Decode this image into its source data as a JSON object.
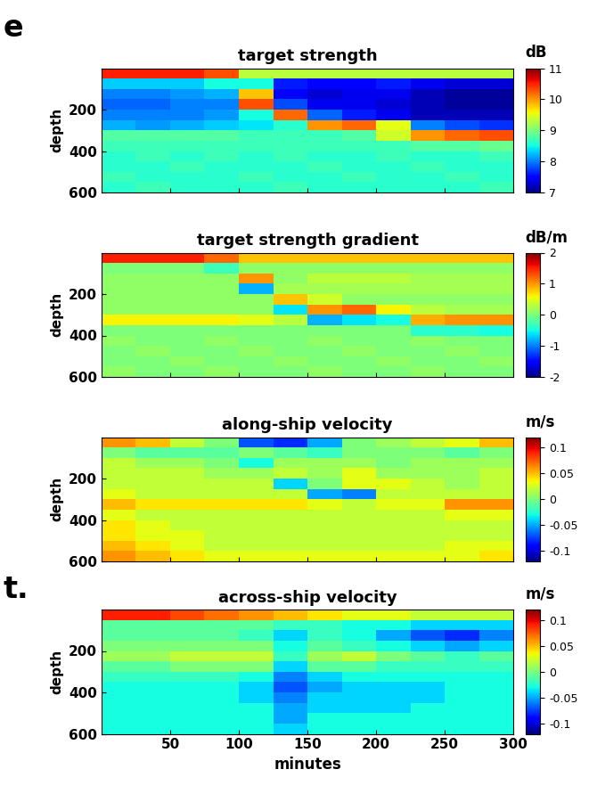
{
  "side_texts": [
    "e",
    "t."
  ],
  "chart_data": [
    {
      "type": "heatmap",
      "title": "target strength",
      "y_label": "depth",
      "tick_labels": "y",
      "xlim": [
        0,
        300
      ],
      "xticks": [
        50,
        100,
        150,
        200,
        250,
        300
      ],
      "ylim": [
        600,
        0
      ],
      "yticks": [
        200,
        400,
        600
      ],
      "x_edges": [
        0,
        25,
        50,
        75,
        100,
        125,
        150,
        175,
        200,
        225,
        250,
        275,
        300
      ],
      "y_edges": [
        0,
        50,
        100,
        150,
        200,
        250,
        300,
        350,
        400,
        450,
        500,
        550,
        600
      ],
      "cells": [
        [
          10.5,
          10.5,
          10.5,
          10.3,
          9.3,
          9.3,
          9.3,
          9.3,
          9.3,
          9.3,
          9.3,
          9.3
        ],
        [
          8.3,
          8.3,
          8.3,
          8.5,
          8.5,
          7.6,
          7.5,
          7.5,
          7.6,
          7.4,
          7.3,
          7.3
        ],
        [
          8.0,
          8.0,
          8.1,
          8.2,
          9.8,
          7.5,
          7.3,
          7.4,
          7.4,
          7.2,
          7.1,
          7.1
        ],
        [
          7.9,
          7.9,
          8.0,
          8.0,
          10.3,
          7.8,
          7.4,
          7.4,
          7.3,
          7.2,
          7.1,
          7.1
        ],
        [
          8.0,
          8.0,
          8.0,
          8.1,
          8.5,
          10.2,
          7.9,
          7.6,
          7.4,
          7.2,
          7.2,
          7.2
        ],
        [
          8.2,
          8.1,
          8.2,
          8.3,
          8.4,
          8.6,
          10.0,
          10.2,
          9.5,
          8.0,
          7.8,
          7.7
        ],
        [
          8.8,
          8.8,
          8.8,
          8.8,
          8.7,
          8.7,
          8.7,
          8.8,
          9.4,
          10.0,
          10.2,
          10.3
        ],
        [
          8.7,
          8.7,
          8.7,
          8.7,
          8.7,
          8.7,
          8.7,
          8.7,
          8.7,
          8.8,
          8.8,
          8.9
        ],
        [
          8.6,
          8.7,
          8.6,
          8.7,
          8.6,
          8.7,
          8.6,
          8.6,
          8.7,
          8.6,
          8.6,
          8.7
        ],
        [
          8.6,
          8.6,
          8.7,
          8.6,
          8.6,
          8.6,
          8.7,
          8.6,
          8.6,
          8.7,
          8.6,
          8.6
        ],
        [
          8.7,
          8.6,
          8.6,
          8.6,
          8.7,
          8.6,
          8.6,
          8.7,
          8.6,
          8.6,
          8.7,
          8.6
        ],
        [
          8.6,
          8.7,
          8.6,
          8.6,
          8.6,
          8.7,
          8.6,
          8.6,
          8.6,
          8.6,
          8.6,
          8.7
        ]
      ],
      "colorbar": {
        "label": "dB",
        "range": [
          7,
          11
        ],
        "ticks": [
          7,
          8,
          9,
          10,
          11
        ]
      }
    },
    {
      "type": "heatmap",
      "title": "target strength gradient",
      "y_label": "depth",
      "tick_labels": "y",
      "xlim": [
        0,
        300
      ],
      "xticks": [
        50,
        100,
        150,
        200,
        250,
        300
      ],
      "ylim": [
        600,
        0
      ],
      "yticks": [
        200,
        400,
        600
      ],
      "x_edges": [
        0,
        25,
        50,
        75,
        100,
        125,
        150,
        175,
        200,
        225,
        250,
        275,
        300
      ],
      "y_edges": [
        0,
        50,
        100,
        150,
        200,
        250,
        300,
        350,
        400,
        450,
        500,
        550,
        600
      ],
      "cells": [
        [
          1.5,
          1.5,
          1.5,
          1.2,
          0.8,
          0.8,
          0.8,
          0.8,
          0.8,
          0.8,
          0.8,
          0.8
        ],
        [
          0.0,
          0.0,
          0.0,
          -0.3,
          0.1,
          0.1,
          0.1,
          0.1,
          0.1,
          0.1,
          0.1,
          0.1
        ],
        [
          0.1,
          0.1,
          0.1,
          0.1,
          1.0,
          0.1,
          0.3,
          0.3,
          0.3,
          0.2,
          0.2,
          0.2
        ],
        [
          0.1,
          0.1,
          0.1,
          0.1,
          -0.8,
          0.2,
          0.2,
          0.2,
          0.2,
          0.2,
          0.2,
          0.2
        ],
        [
          0.1,
          0.1,
          0.1,
          0.1,
          0.1,
          0.8,
          0.4,
          0.1,
          0.1,
          0.1,
          0.1,
          0.1
        ],
        [
          0.1,
          0.1,
          0.1,
          0.1,
          0.1,
          -0.6,
          1.0,
          1.2,
          0.6,
          0.3,
          0.2,
          0.2
        ],
        [
          0.6,
          0.6,
          0.6,
          0.6,
          0.5,
          0.3,
          -0.8,
          -0.6,
          -0.5,
          0.9,
          1.0,
          1.0
        ],
        [
          0.0,
          0.0,
          0.0,
          0.0,
          0.0,
          0.0,
          0.0,
          0.0,
          0.0,
          -0.4,
          -0.4,
          -0.5
        ],
        [
          0.1,
          0.0,
          0.0,
          0.1,
          0.0,
          0.0,
          0.1,
          0.0,
          0.0,
          0.1,
          0.0,
          0.0
        ],
        [
          0.0,
          0.1,
          0.0,
          0.0,
          0.1,
          0.0,
          0.0,
          0.1,
          0.0,
          0.0,
          0.1,
          0.0
        ],
        [
          0.0,
          0.0,
          0.1,
          0.0,
          0.0,
          0.1,
          0.0,
          0.0,
          0.1,
          0.0,
          0.0,
          0.1
        ],
        [
          0.1,
          0.0,
          0.0,
          0.1,
          0.0,
          0.0,
          0.1,
          0.0,
          0.0,
          0.1,
          0.0,
          0.0
        ]
      ],
      "colorbar": {
        "label": "dB/m",
        "range": [
          -2,
          2
        ],
        "ticks": [
          -2,
          -1,
          0,
          1,
          2
        ]
      }
    },
    {
      "type": "heatmap",
      "title": "along-ship velocity",
      "y_label": "depth",
      "tick_labels": "y",
      "xlim": [
        0,
        300
      ],
      "xticks": [
        50,
        100,
        150,
        200,
        250,
        300
      ],
      "ylim": [
        600,
        0
      ],
      "yticks": [
        200,
        400,
        600
      ],
      "x_edges": [
        0,
        25,
        50,
        75,
        100,
        125,
        150,
        175,
        200,
        225,
        250,
        275,
        300
      ],
      "y_edges": [
        0,
        50,
        100,
        150,
        200,
        250,
        300,
        350,
        400,
        450,
        500,
        550,
        600
      ],
      "cells": [
        [
          0.06,
          0.05,
          0.02,
          0.0,
          -0.07,
          -0.08,
          -0.05,
          0.0,
          0.01,
          0.02,
          0.03,
          0.05
        ],
        [
          0.0,
          -0.01,
          -0.01,
          -0.01,
          0.0,
          -0.01,
          -0.02,
          0.0,
          0.0,
          0.0,
          -0.01,
          0.0
        ],
        [
          0.02,
          0.01,
          0.01,
          0.0,
          -0.03,
          0.01,
          0.01,
          0.01,
          0.0,
          0.01,
          0.01,
          0.01
        ],
        [
          0.02,
          0.02,
          0.02,
          0.01,
          0.01,
          0.02,
          0.01,
          0.03,
          0.01,
          0.01,
          0.01,
          0.02
        ],
        [
          0.02,
          0.02,
          0.02,
          0.02,
          0.02,
          -0.04,
          0.0,
          0.03,
          0.03,
          0.02,
          0.01,
          0.02
        ],
        [
          0.03,
          0.02,
          0.02,
          0.02,
          0.02,
          0.02,
          -0.05,
          -0.06,
          0.02,
          0.02,
          0.02,
          0.02
        ],
        [
          0.05,
          0.04,
          0.04,
          0.04,
          0.04,
          0.04,
          0.03,
          0.02,
          0.03,
          0.03,
          0.06,
          0.06
        ],
        [
          0.03,
          0.02,
          0.02,
          0.02,
          0.02,
          0.02,
          0.02,
          0.02,
          0.02,
          0.02,
          0.03,
          0.03
        ],
        [
          0.04,
          0.03,
          0.02,
          0.02,
          0.02,
          0.02,
          0.02,
          0.02,
          0.02,
          0.02,
          0.02,
          0.02
        ],
        [
          0.04,
          0.03,
          0.03,
          0.02,
          0.02,
          0.02,
          0.02,
          0.02,
          0.02,
          0.02,
          0.02,
          0.02
        ],
        [
          0.05,
          0.04,
          0.03,
          0.02,
          0.02,
          0.02,
          0.02,
          0.02,
          0.02,
          0.02,
          0.03,
          0.03
        ],
        [
          0.06,
          0.05,
          0.04,
          0.03,
          0.03,
          0.03,
          0.03,
          0.03,
          0.03,
          0.03,
          0.03,
          0.04
        ]
      ],
      "colorbar": {
        "label": "m/s",
        "range": [
          -0.12,
          0.12
        ],
        "ticks": [
          -0.1,
          -0.05,
          0,
          0.05,
          0.1
        ]
      }
    },
    {
      "type": "heatmap",
      "title": "across-ship velocity",
      "y_label": "depth",
      "x_label": "minutes",
      "xlim": [
        0,
        300
      ],
      "xticks": [
        50,
        100,
        150,
        200,
        250,
        300
      ],
      "ylim": [
        600,
        0
      ],
      "yticks": [
        200,
        400,
        600
      ],
      "x_edges": [
        0,
        25,
        50,
        75,
        100,
        125,
        150,
        175,
        200,
        225,
        250,
        275,
        300
      ],
      "y_edges": [
        0,
        50,
        100,
        150,
        200,
        250,
        300,
        350,
        400,
        450,
        500,
        550,
        600
      ],
      "cells": [
        [
          0.09,
          0.09,
          0.08,
          0.07,
          0.06,
          0.05,
          0.04,
          0.03,
          0.03,
          0.02,
          0.02,
          0.02
        ],
        [
          -0.01,
          -0.01,
          -0.01,
          -0.01,
          -0.01,
          -0.02,
          -0.02,
          -0.03,
          -0.03,
          -0.04,
          -0.04,
          -0.04
        ],
        [
          -0.01,
          -0.01,
          -0.01,
          -0.01,
          -0.02,
          -0.04,
          -0.02,
          -0.03,
          -0.05,
          -0.07,
          -0.08,
          -0.06
        ],
        [
          0.0,
          0.0,
          0.0,
          0.0,
          0.0,
          -0.03,
          -0.01,
          -0.02,
          -0.03,
          -0.04,
          -0.05,
          -0.04
        ],
        [
          0.01,
          0.01,
          0.02,
          0.02,
          0.02,
          -0.02,
          0.01,
          0.02,
          0.0,
          -0.01,
          -0.02,
          -0.01
        ],
        [
          -0.01,
          -0.01,
          0.0,
          0.0,
          0.0,
          -0.04,
          -0.01,
          -0.01,
          -0.02,
          -0.02,
          -0.02,
          -0.02
        ],
        [
          -0.02,
          -0.02,
          -0.02,
          -0.02,
          -0.03,
          -0.06,
          -0.04,
          -0.03,
          -0.03,
          -0.03,
          -0.03,
          -0.03
        ],
        [
          -0.03,
          -0.03,
          -0.03,
          -0.03,
          -0.04,
          -0.07,
          -0.05,
          -0.04,
          -0.04,
          -0.04,
          -0.03,
          -0.03
        ],
        [
          -0.03,
          -0.03,
          -0.03,
          -0.03,
          -0.04,
          -0.06,
          -0.04,
          -0.04,
          -0.04,
          -0.04,
          -0.03,
          -0.03
        ],
        [
          -0.03,
          -0.03,
          -0.03,
          -0.03,
          -0.03,
          -0.05,
          -0.04,
          -0.04,
          -0.04,
          -0.03,
          -0.03,
          -0.03
        ],
        [
          -0.03,
          -0.03,
          -0.03,
          -0.03,
          -0.03,
          -0.05,
          -0.03,
          -0.03,
          -0.03,
          -0.03,
          -0.03,
          -0.03
        ],
        [
          -0.03,
          -0.03,
          -0.03,
          -0.03,
          -0.03,
          -0.04,
          -0.03,
          -0.03,
          -0.03,
          -0.03,
          -0.03,
          -0.03
        ]
      ],
      "colorbar": {
        "label": "m/s",
        "range": [
          -0.12,
          0.12
        ],
        "ticks": [
          -0.1,
          -0.05,
          0,
          0.05,
          0.1
        ]
      }
    }
  ]
}
